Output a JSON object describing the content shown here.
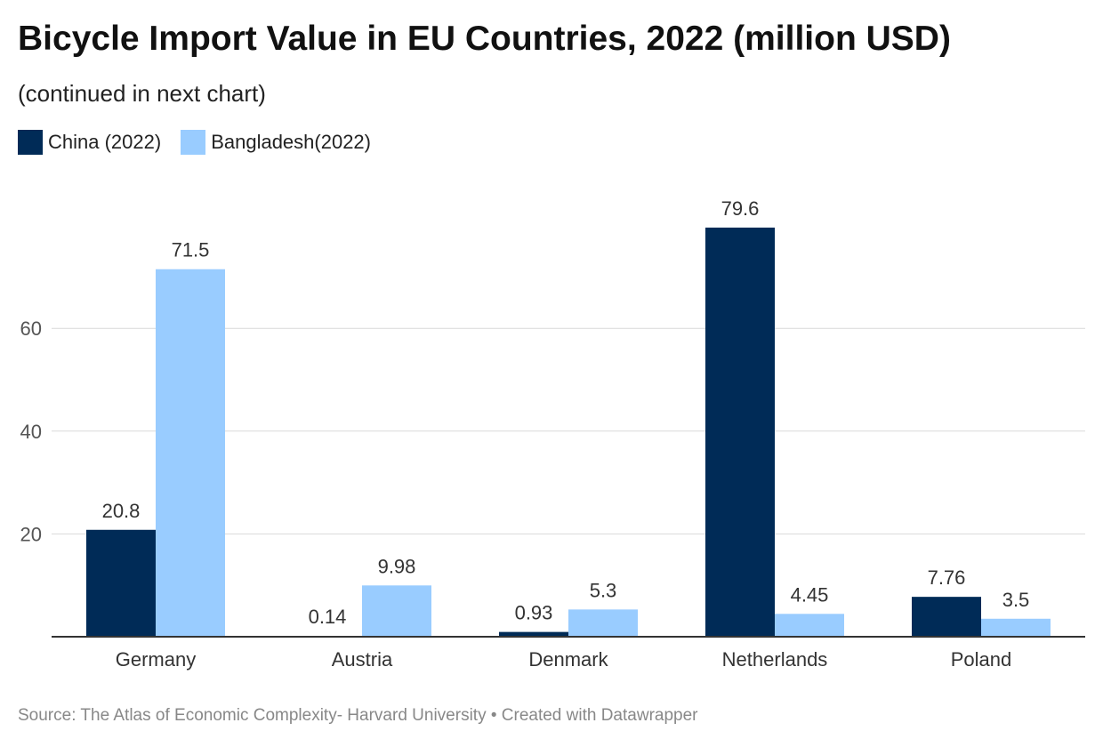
{
  "chart_data": {
    "type": "bar",
    "title": "Bicycle Import Value in EU Countries, 2022 (million USD)",
    "subtitle": "(continued in next chart)",
    "categories": [
      "Germany",
      "Austria",
      "Denmark",
      "Netherlands",
      "Poland"
    ],
    "series": [
      {
        "name": "China (2022)",
        "color": "#002b57",
        "values": [
          20.8,
          0.14,
          0.93,
          79.6,
          7.76
        ],
        "labels": [
          "20.8",
          "0.14",
          "0.93",
          "79.6",
          "7.76"
        ]
      },
      {
        "name": "Bangladesh(2022)",
        "color": "#99ccff",
        "values": [
          71.5,
          9.98,
          5.3,
          4.45,
          3.5
        ],
        "labels": [
          "71.5",
          "9.98",
          "5.3",
          "4.45",
          "3.5"
        ]
      }
    ],
    "yticks": [
      20,
      40,
      60
    ],
    "ytick_labels": [
      "20",
      "40",
      "60"
    ],
    "ylim": [
      0,
      80
    ],
    "grid": true,
    "legend_position": "top-left",
    "source": "Source: The Atlas of Economic Complexity- Harvard University • Created with Datawrapper"
  }
}
